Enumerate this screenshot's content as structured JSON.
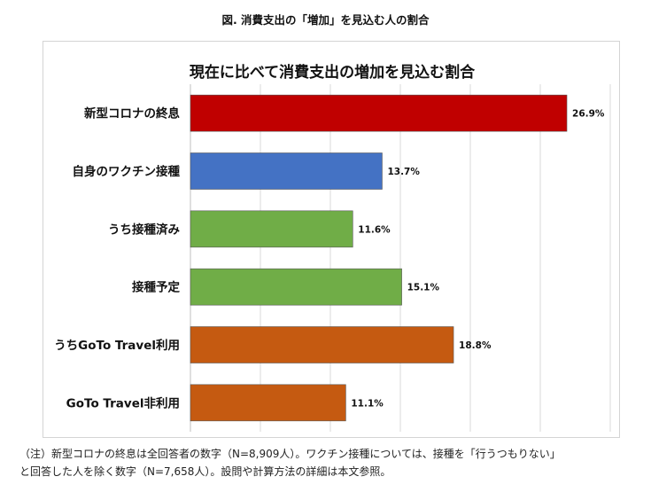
{
  "figure_title": "図. 消費支出の「増加」を見込む人の割合",
  "note": {
    "line1": "（注）新型コロナの終息は全回答者の数字（N=8,909人）。ワクチン接種については、接種を「行うつもりない」",
    "line2": "と回答した人を除く数字（N=7,658人）。設問や計算方法の詳細は本文参照。"
  },
  "chart_data": {
    "type": "bar",
    "orientation": "horizontal",
    "title": "現在に比べて消費支出の増加を見込む割合",
    "categories": [
      "新型コロナの終息",
      "自身のワクチン接種",
      "うち接種済み",
      "接種予定",
      "うちGoTo Travel利用",
      "GoTo Travel非利用"
    ],
    "values": [
      26.9,
      13.7,
      11.6,
      15.1,
      18.8,
      11.1
    ],
    "value_labels": [
      "26.9%",
      "13.7%",
      "11.6%",
      "15.1%",
      "18.8%",
      "11.1%"
    ],
    "colors": [
      "#c00000",
      "#4472c4",
      "#70ad47",
      "#70ad47",
      "#c55a11",
      "#c55a11"
    ],
    "xlim": [
      0,
      30
    ],
    "grid": true,
    "xlabel": "",
    "ylabel": ""
  }
}
